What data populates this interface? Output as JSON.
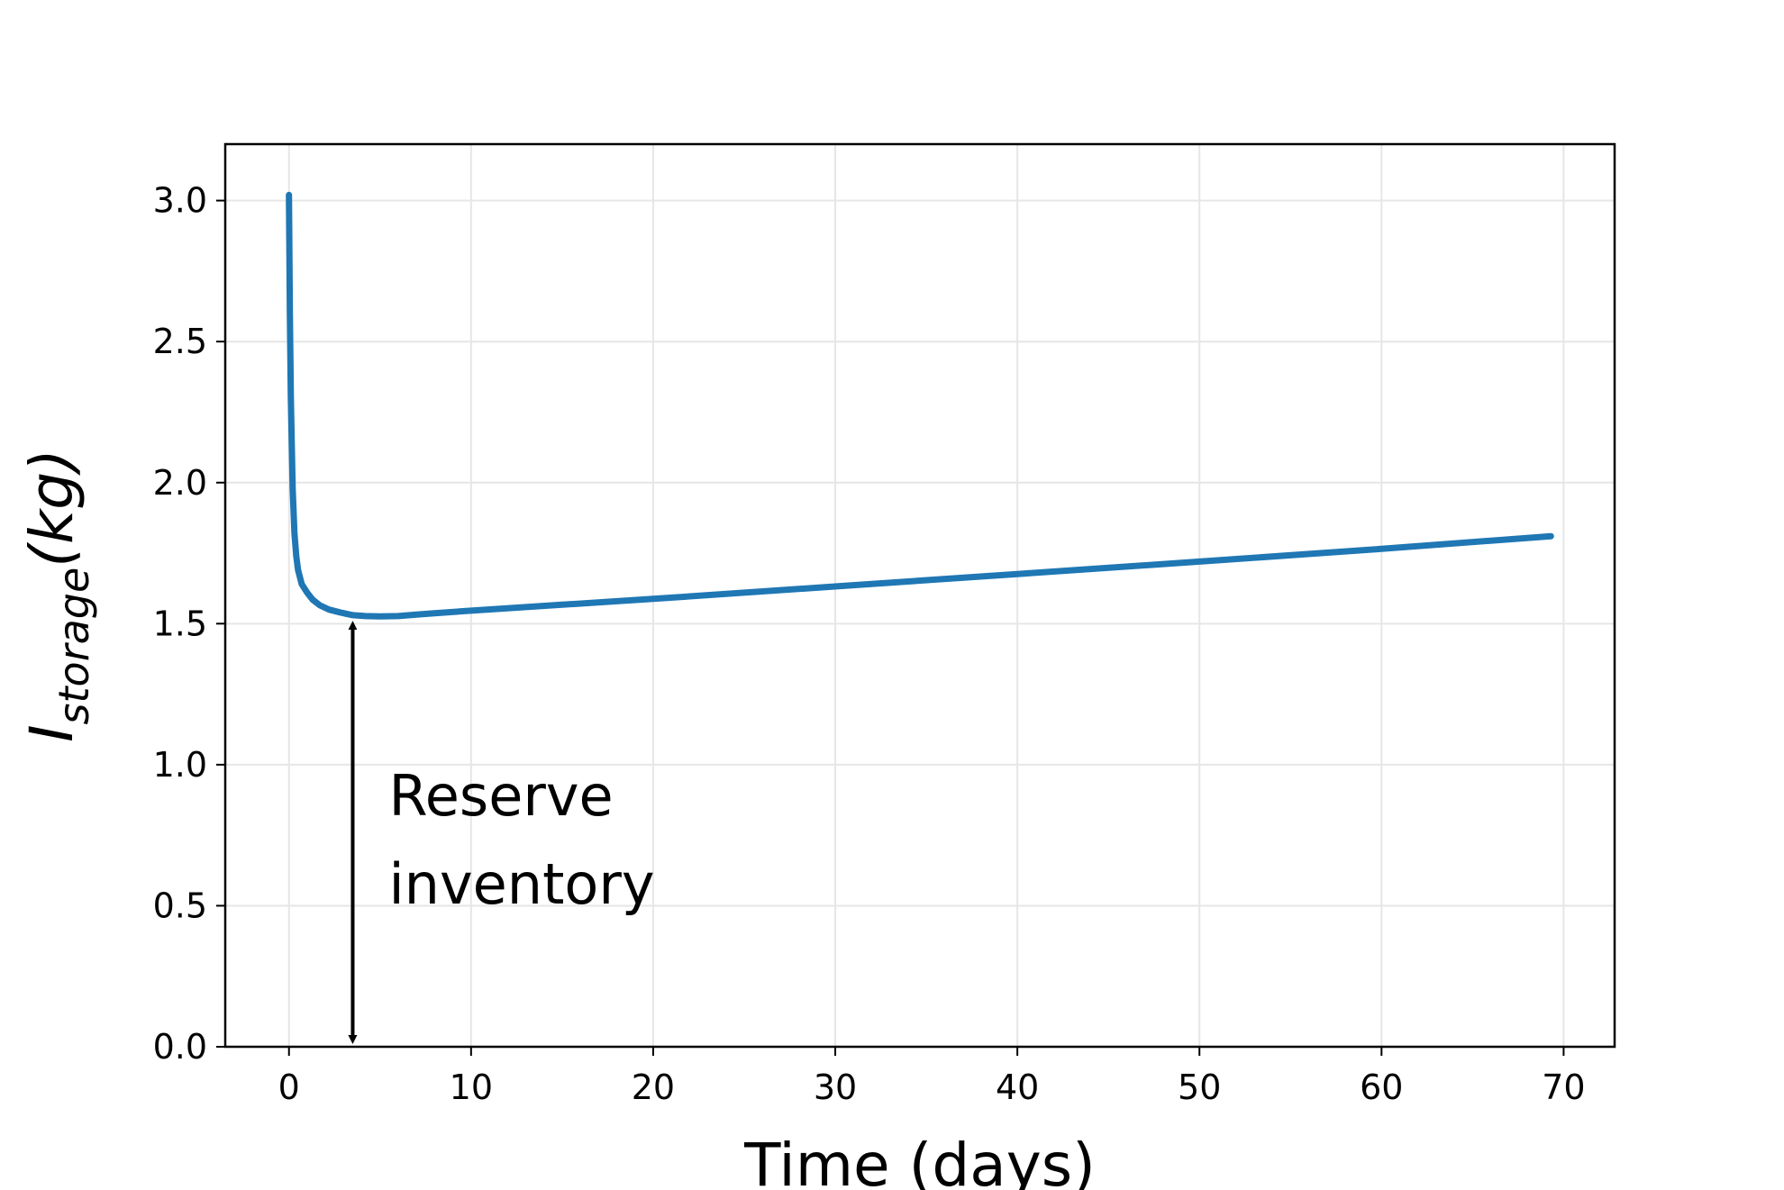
{
  "chart_data": {
    "type": "line",
    "title": "",
    "xlabel": "Time (days)",
    "ylabel": {
      "main": "I",
      "subscript": "storage",
      "unit": "(kg)"
    },
    "xlim": [
      -3.5,
      72.8
    ],
    "ylim": [
      0,
      3.2
    ],
    "xticks": [
      0,
      10,
      20,
      30,
      40,
      50,
      60,
      70
    ],
    "xtick_labels": [
      "0",
      "10",
      "20",
      "30",
      "40",
      "50",
      "60",
      "70"
    ],
    "yticks": [
      0.0,
      0.5,
      1.0,
      1.5,
      2.0,
      2.5,
      3.0
    ],
    "ytick_labels": [
      "0.0",
      "0.5",
      "1.0",
      "1.5",
      "2.0",
      "2.5",
      "3.0"
    ],
    "grid": true,
    "line_color": "#1f77b4",
    "series": [
      {
        "x": [
          0.0,
          0.05,
          0.1,
          0.2,
          0.3,
          0.4,
          0.5,
          0.7,
          1.0,
          1.3,
          1.7,
          2.2,
          2.8,
          3.5,
          4.2,
          5.0,
          6.0,
          7.0,
          8.0,
          10.0,
          15.0,
          20.0,
          30.0,
          40.0,
          50.0,
          60.0,
          69.3
        ],
        "y": [
          3.02,
          2.6,
          2.3,
          1.98,
          1.82,
          1.74,
          1.69,
          1.64,
          1.61,
          1.585,
          1.565,
          1.55,
          1.54,
          1.53,
          1.527,
          1.526,
          1.527,
          1.532,
          1.537,
          1.546,
          1.567,
          1.588,
          1.632,
          1.676,
          1.72,
          1.765,
          1.81
        ]
      }
    ],
    "annotations": [
      {
        "text_lines": [
          "Reserve",
          "inventory"
        ],
        "arrow": {
          "x": 3.5,
          "y_from": 0.0,
          "y_to": 1.526,
          "style": "double-headed"
        }
      }
    ]
  }
}
